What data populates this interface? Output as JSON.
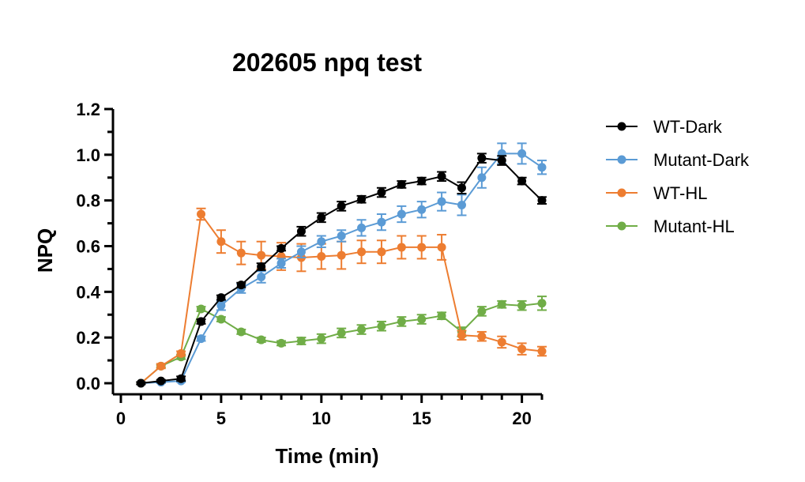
{
  "chart_data": {
    "type": "line",
    "title": "202605 npq test",
    "xlabel": "Time (min)",
    "ylabel": "NPQ",
    "xlim": [
      0,
      21
    ],
    "ylim": [
      0,
      1.2
    ],
    "xticks": [
      0,
      5,
      10,
      15,
      20
    ],
    "xtick_labels": [
      "0",
      "5",
      "10",
      "15",
      "20"
    ],
    "yticks": [
      0.0,
      0.2,
      0.4,
      0.6,
      0.8,
      1.0,
      1.2
    ],
    "ytick_labels": [
      "0.0",
      "0.2",
      "0.4",
      "0.6",
      "0.8",
      "1.0",
      "1.2"
    ],
    "legend_position": "right",
    "grid": false,
    "x": [
      1,
      2,
      3,
      4,
      5,
      6,
      7,
      8,
      9,
      10,
      11,
      12,
      13,
      14,
      15,
      16,
      17,
      18,
      19,
      20,
      21
    ],
    "series": [
      {
        "name": "WT-Dark",
        "color": "#000000",
        "values": [
          0.0,
          0.01,
          0.02,
          0.27,
          0.375,
          0.43,
          0.51,
          0.59,
          0.665,
          0.725,
          0.775,
          0.805,
          0.835,
          0.87,
          0.885,
          0.905,
          0.855,
          0.985,
          0.975,
          0.885,
          0.8
        ],
        "errors": [
          0.005,
          0.005,
          0.01,
          0.01,
          0.01,
          0.01,
          0.015,
          0.01,
          0.02,
          0.02,
          0.02,
          0.015,
          0.02,
          0.015,
          0.015,
          0.02,
          0.025,
          0.02,
          0.02,
          0.015,
          0.015
        ]
      },
      {
        "name": "Mutant-Dark",
        "color": "#5b9bd5",
        "values": [
          0.0,
          0.005,
          0.01,
          0.195,
          0.34,
          0.415,
          0.465,
          0.525,
          0.575,
          0.62,
          0.645,
          0.68,
          0.705,
          0.74,
          0.76,
          0.795,
          0.78,
          0.9,
          1.005,
          1.005,
          0.945
        ],
        "errors": [
          0.005,
          0.005,
          0.005,
          0.01,
          0.02,
          0.02,
          0.025,
          0.02,
          0.025,
          0.025,
          0.025,
          0.035,
          0.035,
          0.035,
          0.035,
          0.04,
          0.045,
          0.045,
          0.045,
          0.045,
          0.03
        ]
      },
      {
        "name": "WT-HL",
        "color": "#ed7d31",
        "values": [
          0.0,
          0.075,
          0.13,
          0.74,
          0.62,
          0.57,
          0.56,
          0.555,
          0.55,
          0.555,
          0.56,
          0.575,
          0.575,
          0.595,
          0.595,
          0.595,
          0.21,
          0.205,
          0.18,
          0.15,
          0.14
        ],
        "errors": [
          0.005,
          0.01,
          0.01,
          0.025,
          0.05,
          0.05,
          0.06,
          0.06,
          0.06,
          0.055,
          0.06,
          0.05,
          0.05,
          0.05,
          0.05,
          0.055,
          0.02,
          0.02,
          0.025,
          0.025,
          0.02
        ]
      },
      {
        "name": "Mutant-HL",
        "color": "#70ad47",
        "values": [
          0.0,
          0.075,
          0.115,
          0.325,
          0.28,
          0.225,
          0.19,
          0.175,
          0.185,
          0.195,
          0.22,
          0.235,
          0.25,
          0.27,
          0.28,
          0.295,
          0.225,
          0.315,
          0.345,
          0.34,
          0.35
        ],
        "errors": [
          0.005,
          0.005,
          0.01,
          0.01,
          0.01,
          0.01,
          0.01,
          0.01,
          0.015,
          0.02,
          0.02,
          0.02,
          0.02,
          0.02,
          0.02,
          0.015,
          0.02,
          0.02,
          0.015,
          0.02,
          0.03
        ]
      }
    ]
  }
}
